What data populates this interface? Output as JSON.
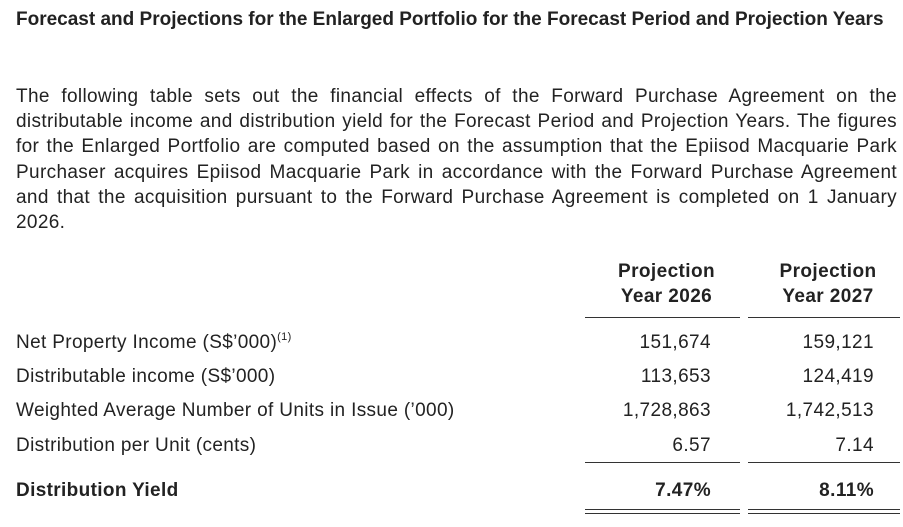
{
  "heading": "Forecast and Projections for the Enlarged Portfolio for the Forecast Period and Projection Years",
  "paragraph": "The following table sets out the financial effects of the Forward Purchase Agreement on the distributable income and distribution yield for the Forecast Period and Projection Years. The figures for the Enlarged Portfolio are computed based on the assumption that the Epiisod Macquarie Park Purchaser acquires Epiisod Macquarie Park in accordance with the Forward Purchase Agreement and that the acquisition pursuant to the Forward Purchase Agreement is completed on 1 January 2026.",
  "table": {
    "columns": [
      {
        "line1": "Projection",
        "line2": "Year 2026"
      },
      {
        "line1": "Projection",
        "line2": "Year 2027"
      }
    ],
    "rows": [
      {
        "label": "Net Property Income (S$’000)",
        "note": "(1)",
        "values": [
          "151,674",
          "159,121"
        ]
      },
      {
        "label": "Distributable income (S$’000)",
        "values": [
          "113,653",
          "124,419"
        ]
      },
      {
        "label": "Weighted Average Number of Units in Issue (’000)",
        "values": [
          "1,728,863",
          "1,742,513"
        ]
      },
      {
        "label": "Distribution per Unit (cents)",
        "values": [
          "6.57",
          "7.14"
        ]
      }
    ],
    "total_row": {
      "label": "Distribution Yield",
      "values": [
        "7.47%",
        "8.11%"
      ]
    }
  }
}
